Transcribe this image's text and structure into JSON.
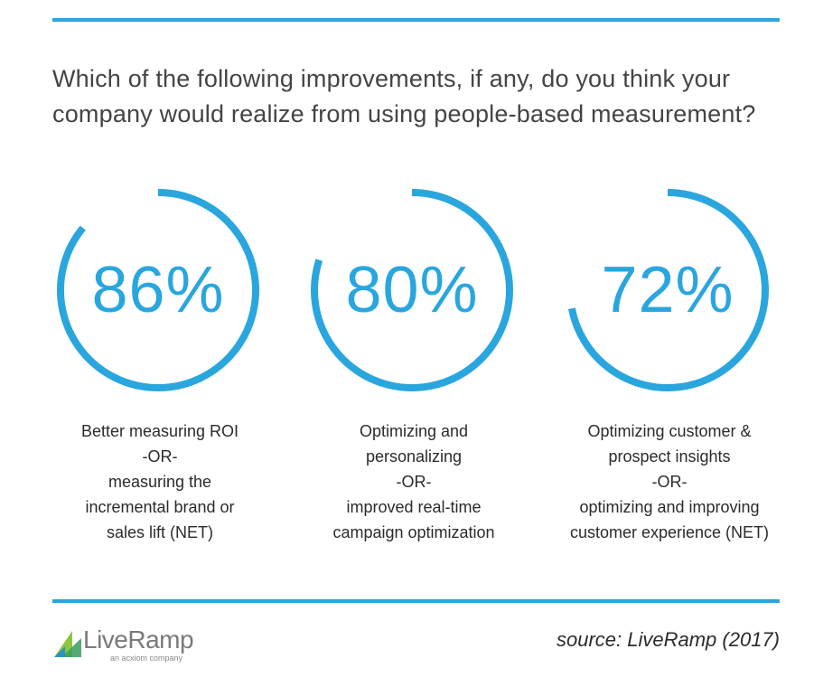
{
  "question": "Which of the following improvements, if any, do you think your company would realize from using people-based measurement?",
  "chart_data": {
    "type": "pie",
    "series": [
      {
        "value": 86,
        "label": "86%",
        "lines": [
          "Better measuring ROI",
          "-OR-",
          "measuring the",
          "incremental brand or",
          "sales lift (NET)"
        ]
      },
      {
        "value": 80,
        "label": "80%",
        "lines": [
          "Optimizing and",
          "personalizing",
          "-OR-",
          "improved real-time",
          "campaign optimization"
        ]
      },
      {
        "value": 72,
        "label": "72%",
        "lines": [
          "Optimizing customer &",
          "prospect insights",
          "-OR-",
          "optimizing and improving",
          "customer experience (NET)"
        ]
      }
    ],
    "color": "#2aa6de"
  },
  "footer": {
    "logo_text": "LiveRamp",
    "logo_tagline": "an acxiom company",
    "source": "source: LiveRamp (2017)"
  }
}
